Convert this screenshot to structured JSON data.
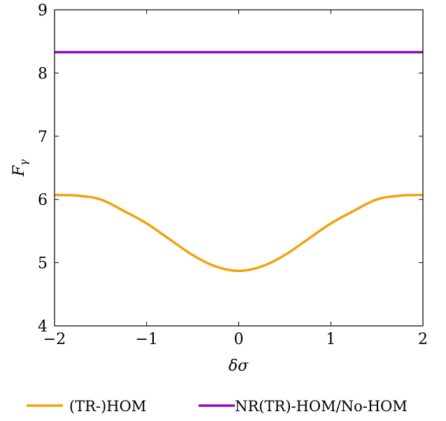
{
  "chart_data": {
    "type": "line",
    "xlabel": "δσ",
    "ylabel": "F",
    "ylabel_sub": "γ",
    "xlim": [
      -2,
      2
    ],
    "ylim": [
      4,
      9
    ],
    "xticks": [
      -2,
      -1,
      0,
      1,
      2
    ],
    "xtick_labels": [
      "−2",
      "−1",
      "0",
      "1",
      "2"
    ],
    "yticks": [
      4,
      5,
      6,
      7,
      8,
      9
    ],
    "ytick_labels": [
      "4",
      "5",
      "6",
      "7",
      "8",
      "9"
    ],
    "grid": false,
    "legend_position": "bottom",
    "series": [
      {
        "name": "(TR-)HOM",
        "color": "#f5a00f",
        "x": [
          -2,
          -1.75,
          -1.5,
          -1.25,
          -1,
          -0.75,
          -0.5,
          -0.25,
          0,
          0.25,
          0.5,
          0.75,
          1,
          1.25,
          1.5,
          1.75,
          2
        ],
        "y": [
          6.07,
          6.06,
          6.0,
          5.82,
          5.62,
          5.37,
          5.12,
          4.94,
          4.87,
          4.94,
          5.12,
          5.37,
          5.62,
          5.82,
          6.0,
          6.06,
          6.07
        ]
      },
      {
        "name": "NR(TR)-HOM/No-HOM",
        "color": "#8a0fc8",
        "x": [
          -2,
          2
        ],
        "y": [
          8.33,
          8.33
        ]
      }
    ]
  }
}
